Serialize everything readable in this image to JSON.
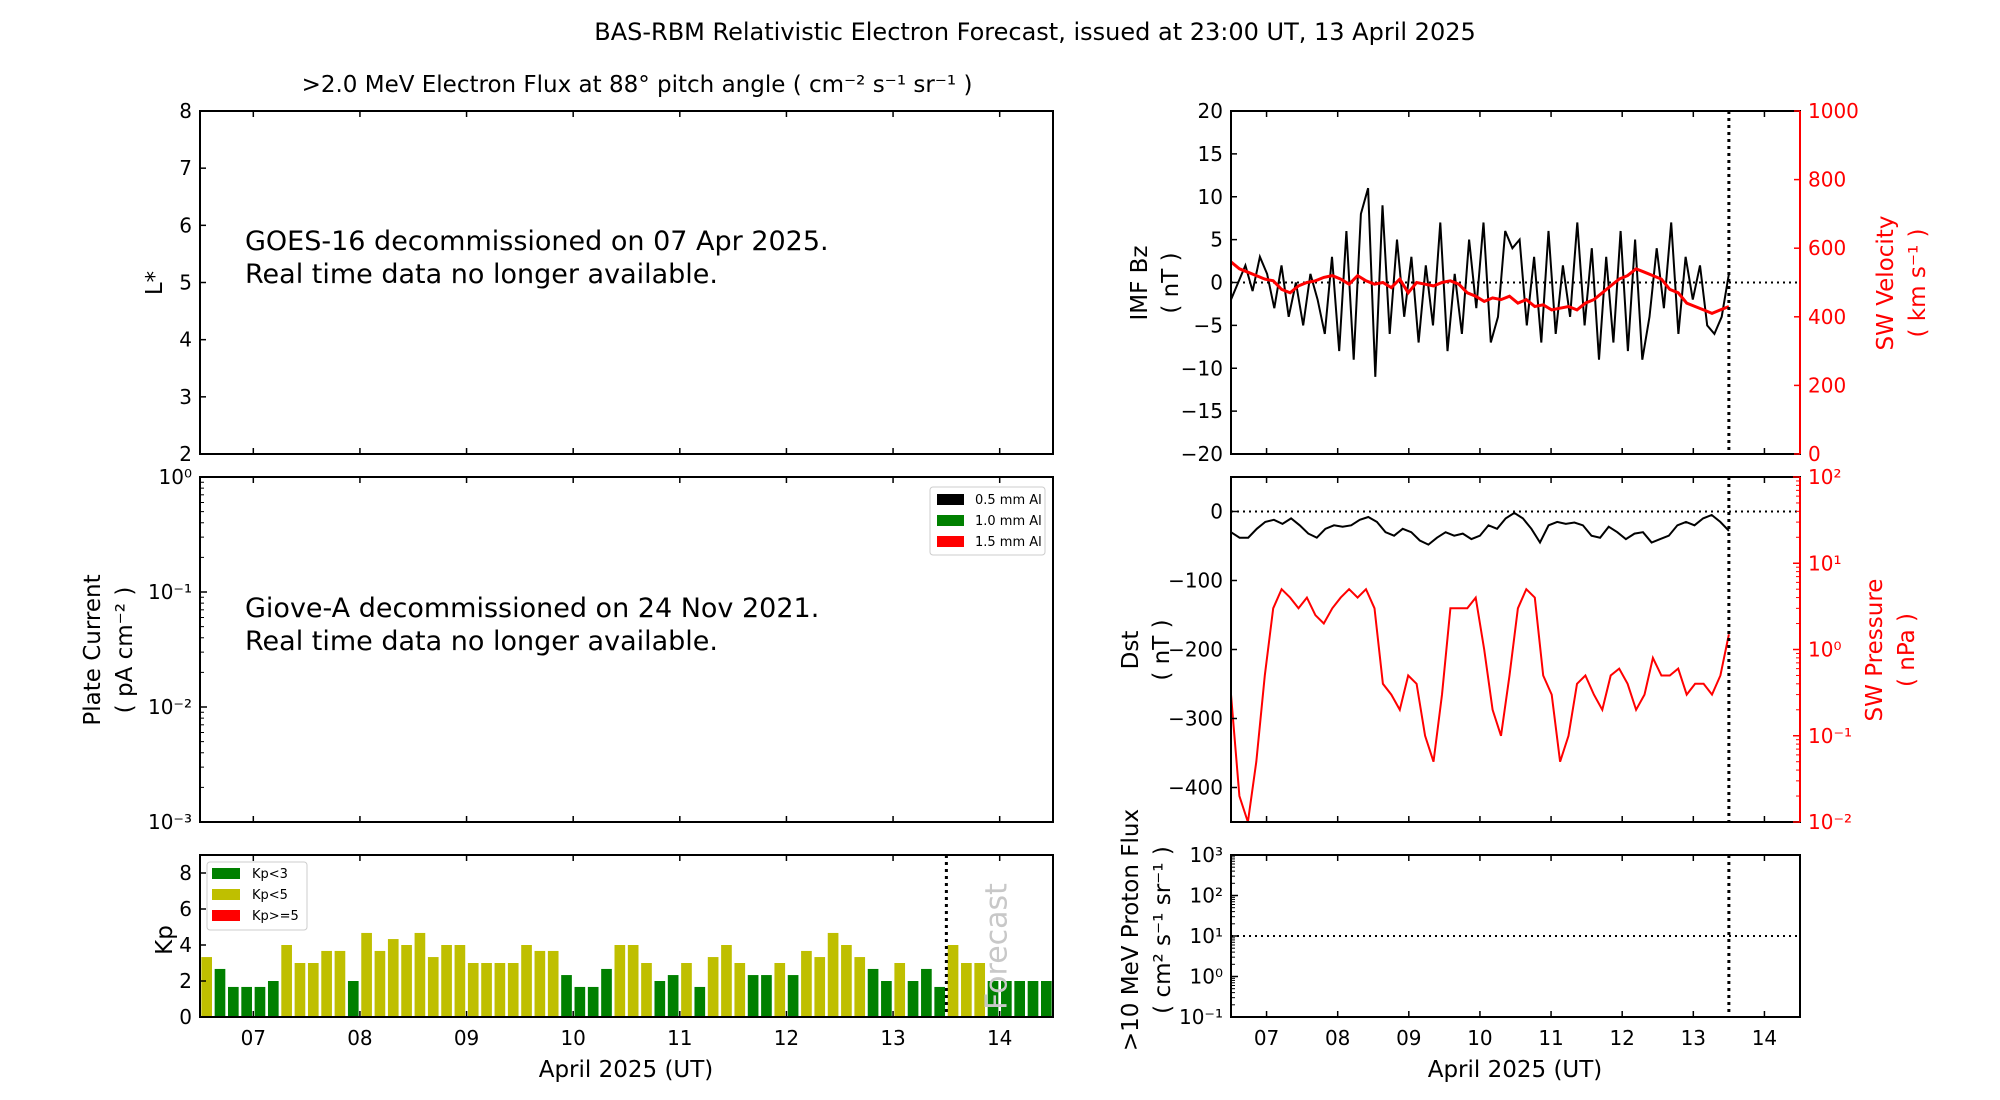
{
  "title": "BAS-RBM Relativistic Electron Forecast, issued at 23:00 UT, 13 April 2025",
  "chart_data": [
    {
      "id": "electron_flux",
      "type": "heatmap",
      "title": ">2.0 MeV Electron Flux at 88° pitch angle ( cm⁻² s⁻¹ sr⁻¹ )",
      "ylabel": "L*",
      "ylim": [
        2,
        8
      ],
      "yticks": [
        "2",
        "3",
        "4",
        "5",
        "6",
        "7",
        "8"
      ],
      "xlim_days": [
        6.5,
        14.5
      ],
      "message": [
        "GOES-16 decommissioned on 07 Apr 2025.",
        "Real time data no longer available."
      ]
    },
    {
      "id": "plate_current",
      "type": "line",
      "ylabel": [
        "Plate Current",
        "( pA cm⁻² )"
      ],
      "yscale": "log",
      "ylim": [
        0.001,
        1
      ],
      "yticks": [
        "10⁻³",
        "10⁻²",
        "10⁻¹",
        "10⁰"
      ],
      "legend": {
        "placement": "top-right",
        "entries": [
          {
            "label": "0.5 mm Al",
            "color": "#000000"
          },
          {
            "label": "1.0 mm Al",
            "color": "#008000"
          },
          {
            "label": "1.5 mm Al",
            "color": "#ff0000"
          }
        ]
      },
      "message": [
        "Giove-A decommissioned on 24 Nov 2021.",
        "Real time data no longer available."
      ]
    },
    {
      "id": "kp",
      "type": "bar",
      "ylabel": "Kp",
      "ylim": [
        0,
        9
      ],
      "yticks": [
        "0",
        "2",
        "4",
        "6",
        "8"
      ],
      "xlabel": "April 2025 (UT)",
      "xticks": [
        "07",
        "08",
        "09",
        "10",
        "11",
        "12",
        "13",
        "14"
      ],
      "xlim_days": [
        6.5,
        14.5
      ],
      "bin_hours": 3,
      "start_day": 6.5,
      "values": [
        3.33,
        2.67,
        1.67,
        1.67,
        1.67,
        2.0,
        4.0,
        3.0,
        3.0,
        3.67,
        3.67,
        2.0,
        4.67,
        3.67,
        4.33,
        4.0,
        4.67,
        3.33,
        4.0,
        4.0,
        3.0,
        3.0,
        3.0,
        3.0,
        4.0,
        3.67,
        3.67,
        2.33,
        1.67,
        1.67,
        2.67,
        4.0,
        4.0,
        3.0,
        2.0,
        2.33,
        3.0,
        1.67,
        3.33,
        4.0,
        3.0,
        2.33,
        2.33,
        3.0,
        2.33,
        3.67,
        3.33,
        4.67,
        4.0,
        3.33,
        2.67,
        2.0,
        3.0,
        2.0,
        2.67,
        1.67,
        4.0,
        3.0,
        3.0,
        2.0,
        2.0,
        2.0,
        2.0,
        2.0
      ],
      "forecast_start_day": 13.5,
      "forecast_label": "Forecast",
      "legend": {
        "placement": "top-left",
        "entries": [
          {
            "label": "Kp<3",
            "color": "#008000"
          },
          {
            "label": "Kp<5",
            "color": "#bfbf00"
          },
          {
            "label": "Kp>=5",
            "color": "#ff0000"
          }
        ]
      }
    },
    {
      "id": "imf_sw",
      "type": "line",
      "ylabel": [
        "IMF Bz",
        "( nT )"
      ],
      "ylim": [
        -20,
        20
      ],
      "yticks": [
        "−20",
        "−15",
        "−10",
        "−5",
        "0",
        "5",
        "10",
        "15",
        "20"
      ],
      "y2label": [
        "SW Velocity",
        "( km s⁻¹ )"
      ],
      "y2lim": [
        0,
        1000
      ],
      "y2ticks": [
        "0",
        "200",
        "400",
        "600",
        "800",
        "1000"
      ],
      "xlim_days": [
        6.5,
        14.5
      ],
      "now_day": 13.5,
      "series": [
        {
          "name": "IMF Bz",
          "color": "#000000",
          "axis": "left",
          "values": [
            -2,
            0,
            2,
            -1,
            3,
            1,
            -3,
            2,
            -4,
            0,
            -5,
            1,
            -2,
            -6,
            3,
            -8,
            6,
            -9,
            8,
            11,
            -11,
            9,
            -6,
            5,
            -4,
            3,
            -7,
            2,
            -5,
            7,
            -8,
            1,
            -6,
            5,
            -3,
            7,
            -7,
            -4,
            6,
            4,
            5,
            -5,
            3,
            -7,
            6,
            -6,
            2,
            -4,
            7,
            -5,
            4,
            -9,
            3,
            -7,
            6,
            -8,
            5,
            -9,
            -4,
            4,
            -3,
            7,
            -6,
            3,
            -2,
            2,
            -5,
            -6,
            -4,
            1
          ]
        },
        {
          "name": "SW Velocity",
          "color": "#ff0000",
          "axis": "right",
          "values": [
            560,
            540,
            530,
            520,
            510,
            505,
            480,
            470,
            490,
            500,
            505,
            515,
            520,
            510,
            495,
            520,
            505,
            495,
            500,
            485,
            510,
            470,
            500,
            495,
            490,
            500,
            505,
            495,
            470,
            460,
            445,
            455,
            450,
            460,
            440,
            450,
            430,
            435,
            420,
            425,
            430,
            420,
            440,
            450,
            470,
            490,
            510,
            520,
            540,
            530,
            520,
            510,
            480,
            470,
            440,
            430,
            420,
            410,
            420,
            430
          ]
        }
      ]
    },
    {
      "id": "dst_pressure",
      "type": "line",
      "ylabel": [
        "Dst",
        "( nT )"
      ],
      "ylim": [
        -450,
        50
      ],
      "yticks": [
        "−400",
        "−300",
        "−200",
        "−100",
        "0"
      ],
      "y2label": [
        "SW Pressure",
        "( nPa )"
      ],
      "y2scale": "log",
      "y2lim": [
        0.01,
        100
      ],
      "y2ticks": [
        "10⁻²",
        "10⁻¹",
        "10⁰",
        "10¹",
        "10²"
      ],
      "xlim_days": [
        6.5,
        14.5
      ],
      "now_day": 13.5,
      "series": [
        {
          "name": "Dst",
          "color": "#000000",
          "axis": "left",
          "values": [
            -30,
            -38,
            -38,
            -25,
            -15,
            -12,
            -18,
            -10,
            -20,
            -32,
            -38,
            -25,
            -20,
            -22,
            -20,
            -12,
            -8,
            -15,
            -30,
            -35,
            -25,
            -30,
            -42,
            -48,
            -38,
            -30,
            -35,
            -32,
            -40,
            -35,
            -20,
            -25,
            -10,
            -2,
            -10,
            -25,
            -45,
            -20,
            -15,
            -18,
            -16,
            -20,
            -35,
            -38,
            -22,
            -30,
            -40,
            -32,
            -30,
            -45,
            -40,
            -35,
            -20,
            -15,
            -20,
            -10,
            -5,
            -15,
            -28
          ]
        },
        {
          "name": "SW Pressure",
          "color": "#ff0000",
          "axis": "right",
          "values": [
            0.3,
            0.02,
            0.01,
            0.05,
            0.5,
            3,
            5,
            4,
            3,
            4,
            2.5,
            2,
            3,
            4,
            5,
            4,
            5,
            3,
            0.4,
            0.3,
            0.2,
            0.5,
            0.4,
            0.1,
            0.05,
            0.3,
            3,
            3,
            3,
            4,
            1,
            0.2,
            0.1,
            0.5,
            3,
            5,
            4,
            0.5,
            0.3,
            0.05,
            0.1,
            0.4,
            0.5,
            0.3,
            0.2,
            0.5,
            0.6,
            0.4,
            0.2,
            0.3,
            0.8,
            0.5,
            0.5,
            0.6,
            0.3,
            0.4,
            0.4,
            0.3,
            0.5,
            1.5
          ]
        }
      ]
    },
    {
      "id": "proton_flux",
      "type": "line",
      "ylabel": [
        ">10 MeV Proton Flux",
        "( cm² s⁻¹ sr⁻¹ )"
      ],
      "yscale": "log",
      "ylim": [
        0.1,
        1000
      ],
      "yticks": [
        "10⁻¹",
        "10⁰",
        "10¹",
        "10²",
        "10³"
      ],
      "threshold": 10,
      "xlabel": "April 2025 (UT)",
      "xticks": [
        "07",
        "08",
        "09",
        "10",
        "11",
        "12",
        "13",
        "14"
      ],
      "xlim_days": [
        6.5,
        14.5
      ],
      "now_day": 13.5
    }
  ]
}
